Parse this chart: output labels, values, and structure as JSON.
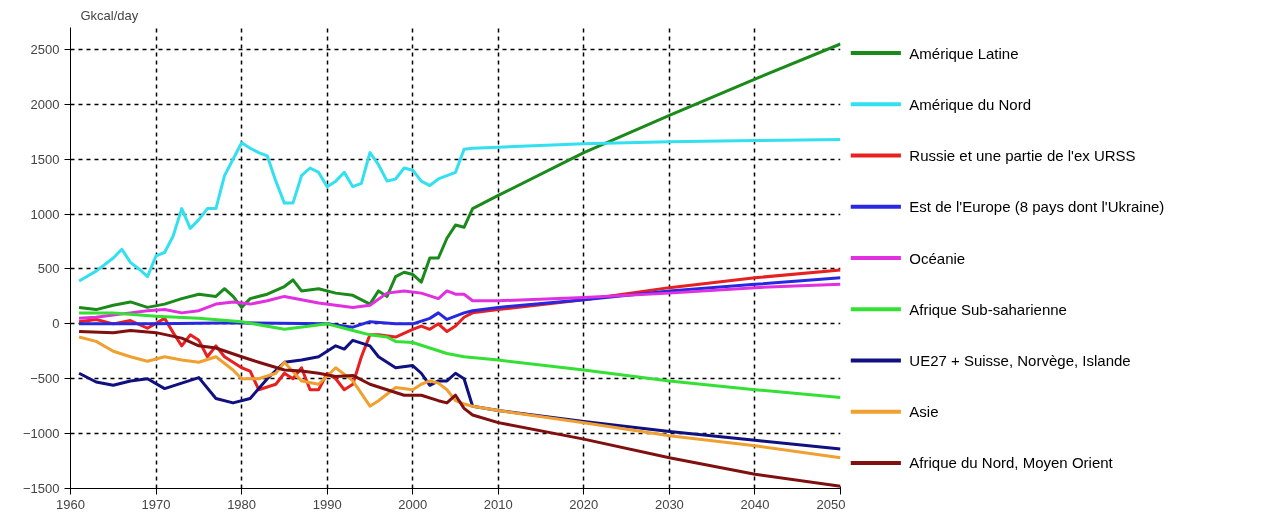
{
  "chart_data": {
    "type": "line",
    "ylabel": "Gkcal/day",
    "xlim": [
      1960,
      2050
    ],
    "xticks": [
      1960,
      1970,
      1980,
      1990,
      2000,
      2010,
      2020,
      2030,
      2040,
      2050
    ],
    "ylim": [
      -1500,
      2700
    ],
    "yticks": [
      -1500,
      -1000,
      -500,
      0,
      500,
      1000,
      1500,
      2000,
      2500
    ],
    "grid": true,
    "legend": "right",
    "line_style": "solid",
    "marker": "none",
    "series": [
      {
        "name": "Amérique Latine",
        "color": "#1a8a1a",
        "x": [
          1961,
          1963,
          1965,
          1967,
          1969,
          1971,
          1973,
          1975,
          1977,
          1978,
          1979,
          1980,
          1981,
          1983,
          1985,
          1986,
          1987,
          1989,
          1991,
          1993,
          1995,
          1996,
          1997,
          1998,
          1999,
          2000,
          2001,
          2002,
          2003,
          2004,
          2005,
          2006,
          2007,
          2010,
          2020,
          2030,
          2040,
          2050
        ],
        "values": [
          150,
          130,
          170,
          200,
          150,
          180,
          230,
          270,
          250,
          320,
          250,
          150,
          230,
          270,
          340,
          400,
          300,
          320,
          280,
          260,
          180,
          300,
          250,
          430,
          470,
          450,
          380,
          600,
          600,
          780,
          900,
          880,
          1050,
          1170,
          1560,
          1900,
          2230,
          2550
        ]
      },
      {
        "name": "Amérique du Nord",
        "color": "#33e0f0",
        "x": [
          1961,
          1963,
          1965,
          1966,
          1967,
          1968,
          1969,
          1970,
          1971,
          1972,
          1973,
          1974,
          1975,
          1976,
          1977,
          1978,
          1979,
          1980,
          1981,
          1982,
          1983,
          1984,
          1985,
          1986,
          1987,
          1988,
          1989,
          1990,
          1991,
          1992,
          1993,
          1994,
          1995,
          1996,
          1997,
          1998,
          1999,
          2000,
          2001,
          2002,
          2003,
          2004,
          2005,
          2006,
          2007,
          2010,
          2020,
          2030,
          2040,
          2050
        ],
        "values": [
          390,
          480,
          600,
          680,
          560,
          500,
          430,
          620,
          650,
          800,
          1050,
          870,
          950,
          1050,
          1050,
          1350,
          1500,
          1650,
          1600,
          1560,
          1530,
          1300,
          1100,
          1100,
          1350,
          1420,
          1380,
          1250,
          1300,
          1380,
          1250,
          1280,
          1560,
          1450,
          1300,
          1320,
          1420,
          1400,
          1300,
          1260,
          1320,
          1350,
          1380,
          1590,
          1600,
          1610,
          1640,
          1660,
          1670,
          1680
        ]
      },
      {
        "name": "Russie et une partie de l'ex URSS",
        "color": "#e82020",
        "x": [
          1961,
          1963,
          1965,
          1967,
          1969,
          1971,
          1972,
          1973,
          1974,
          1975,
          1976,
          1977,
          1978,
          1980,
          1981,
          1982,
          1984,
          1985,
          1986,
          1987,
          1988,
          1989,
          1990,
          1991,
          1992,
          1993,
          1994,
          1995,
          1996,
          1998,
          2000,
          2001,
          2002,
          2003,
          2004,
          2005,
          2006,
          2007,
          2010,
          2020,
          2030,
          2040,
          2050
        ],
        "values": [
          20,
          40,
          0,
          30,
          -40,
          50,
          -80,
          -200,
          -100,
          -150,
          -300,
          -200,
          -300,
          -400,
          -430,
          -600,
          -550,
          -450,
          -500,
          -400,
          -600,
          -600,
          -450,
          -500,
          -600,
          -550,
          -300,
          -100,
          -100,
          -120,
          -50,
          -20,
          -50,
          0,
          -70,
          -20,
          60,
          100,
          130,
          220,
          330,
          420,
          490
        ]
      },
      {
        "name": "Est de l'Europe (8 pays dont l'Ukraine)",
        "color": "#2828e0",
        "x": [
          1961,
          1970,
          1980,
          1990,
          1993,
          1995,
          1998,
          2000,
          2002,
          2003,
          2004,
          2005,
          2006,
          2007,
          2010,
          2020,
          2030,
          2040,
          2050
        ],
        "values": [
          0,
          0,
          10,
          0,
          -30,
          20,
          0,
          0,
          50,
          100,
          40,
          70,
          100,
          120,
          150,
          220,
          300,
          360,
          420
        ]
      },
      {
        "name": "Océanie",
        "color": "#e030e0",
        "x": [
          1961,
          1963,
          1965,
          1967,
          1969,
          1971,
          1973,
          1975,
          1977,
          1979,
          1981,
          1983,
          1985,
          1987,
          1989,
          1991,
          1993,
          1995,
          1997,
          1999,
          2001,
          2003,
          2004,
          2005,
          2006,
          2007,
          2010,
          2020,
          2030,
          2040,
          2050
        ],
        "values": [
          50,
          60,
          80,
          100,
          120,
          130,
          100,
          120,
          180,
          200,
          180,
          210,
          250,
          220,
          190,
          170,
          150,
          170,
          280,
          300,
          280,
          230,
          300,
          270,
          270,
          210,
          210,
          240,
          280,
          330,
          360
        ]
      },
      {
        "name": "Afrique Sub-saharienne",
        "color": "#33e033",
        "x": [
          1961,
          1965,
          1970,
          1975,
          1980,
          1985,
          1988,
          1990,
          1993,
          1995,
          1997,
          1998,
          2000,
          2002,
          2004,
          2006,
          2010,
          2020,
          2030,
          2040,
          2050
        ],
        "values": [
          100,
          100,
          70,
          50,
          20,
          -50,
          -20,
          0,
          -60,
          -100,
          -120,
          -160,
          -170,
          -220,
          -270,
          -300,
          -330,
          -420,
          -520,
          -600,
          -670
        ]
      },
      {
        "name": "UE27 + Suisse, Norvège, Islande",
        "color": "#101080",
        "x": [
          1961,
          1963,
          1965,
          1967,
          1969,
          1971,
          1973,
          1975,
          1977,
          1979,
          1981,
          1983,
          1985,
          1987,
          1989,
          1991,
          1992,
          1993,
          1995,
          1996,
          1998,
          2000,
          2001,
          2002,
          2003,
          2004,
          2005,
          2006,
          2007,
          2010,
          2020,
          2030,
          2040,
          2050
        ],
        "values": [
          -450,
          -530,
          -560,
          -520,
          -500,
          -590,
          -540,
          -490,
          -680,
          -720,
          -680,
          -500,
          -350,
          -330,
          -300,
          -200,
          -230,
          -150,
          -200,
          -300,
          -400,
          -380,
          -450,
          -560,
          -520,
          -520,
          -450,
          -500,
          -750,
          -790,
          -890,
          -980,
          -1060,
          -1140
        ]
      },
      {
        "name": "Asie",
        "color": "#f0a030",
        "x": [
          1961,
          1963,
          1965,
          1967,
          1969,
          1971,
          1973,
          1975,
          1977,
          1979,
          1980,
          1982,
          1984,
          1985,
          1987,
          1989,
          1991,
          1993,
          1995,
          1996,
          1998,
          2000,
          2001,
          2002,
          2003,
          2004,
          2005,
          2006,
          2007,
          2010,
          2020,
          2030,
          2040,
          2050
        ],
        "values": [
          -120,
          -160,
          -250,
          -300,
          -340,
          -300,
          -330,
          -350,
          -300,
          -420,
          -500,
          -500,
          -450,
          -350,
          -520,
          -550,
          -400,
          -520,
          -750,
          -700,
          -580,
          -600,
          -550,
          -520,
          -540,
          -600,
          -700,
          -730,
          -750,
          -790,
          -900,
          -1020,
          -1110,
          -1220
        ]
      },
      {
        "name": "Afrique du Nord, Moyen Orient",
        "color": "#801010",
        "x": [
          1961,
          1965,
          1967,
          1970,
          1973,
          1975,
          1977,
          1980,
          1982,
          1985,
          1987,
          1989,
          1991,
          1993,
          1995,
          1997,
          1999,
          2001,
          2003,
          2004,
          2005,
          2006,
          2007,
          2010,
          2020,
          2030,
          2040,
          2050
        ],
        "values": [
          -70,
          -80,
          -60,
          -80,
          -130,
          -200,
          -220,
          -300,
          -350,
          -420,
          -430,
          -450,
          -480,
          -470,
          -550,
          -600,
          -650,
          -650,
          -700,
          -720,
          -650,
          -770,
          -830,
          -900,
          -1050,
          -1220,
          -1370,
          -1480
        ]
      }
    ]
  }
}
